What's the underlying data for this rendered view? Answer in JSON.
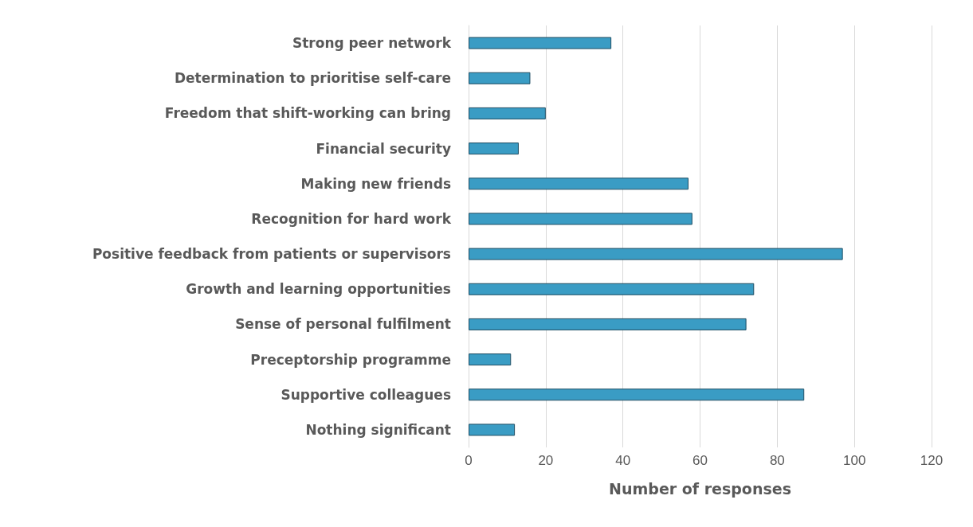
{
  "chart_data": {
    "type": "bar",
    "orientation": "horizontal",
    "xlabel": "Number of responses",
    "categories": [
      "Strong peer network",
      "Determination to prioritise self-care",
      "Freedom that shift-working can bring",
      "Financial security",
      "Making new friends",
      "Recognition for hard work",
      "Positive feedback from patients or supervisors",
      "Growth and learning opportunities",
      "Sense of personal fulfilment",
      "Preceptorship programme",
      "Supportive colleagues",
      "Nothing significant"
    ],
    "values": [
      37,
      16,
      20,
      13,
      57,
      58,
      97,
      74,
      72,
      11,
      87,
      12
    ],
    "color": "#3a9cc4",
    "xlim": [
      0,
      120
    ],
    "xticks": [
      0,
      20,
      40,
      60,
      80,
      100,
      120
    ],
    "grid": "x"
  }
}
